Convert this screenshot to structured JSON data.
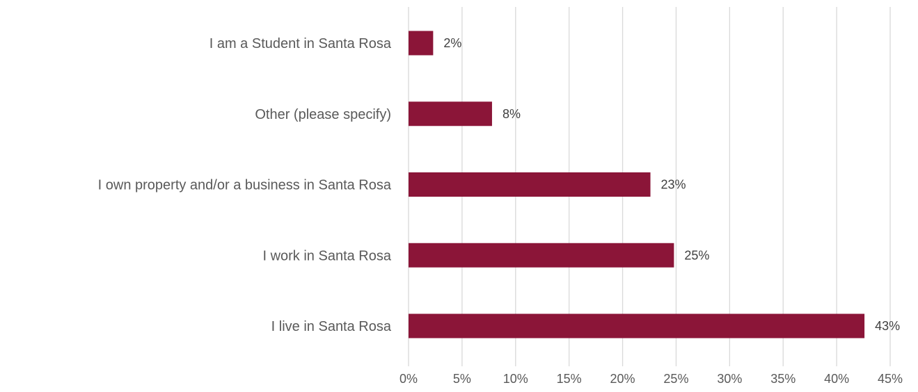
{
  "chart_data": {
    "type": "bar",
    "orientation": "horizontal",
    "categories": [
      "I am a Student in Santa Rosa",
      "Other (please specify)",
      "I own property and/or a business in Santa Rosa",
      "I work in Santa Rosa",
      "I live in Santa Rosa"
    ],
    "values": [
      2.3,
      7.8,
      22.6,
      24.8,
      42.6
    ],
    "data_labels": [
      "2%",
      "8%",
      "23%",
      "25%",
      "43%"
    ],
    "xlim": [
      0,
      45
    ],
    "x_ticks": [
      0,
      5,
      10,
      15,
      20,
      25,
      30,
      35,
      40,
      45
    ],
    "x_tick_labels": [
      "0%",
      "5%",
      "10%",
      "15%",
      "20%",
      "25%",
      "30%",
      "35%",
      "40%",
      "45%"
    ],
    "title": "",
    "xlabel": "",
    "ylabel": "",
    "grid": "vertical",
    "legend": "none",
    "bar_color": "#8B1538"
  }
}
